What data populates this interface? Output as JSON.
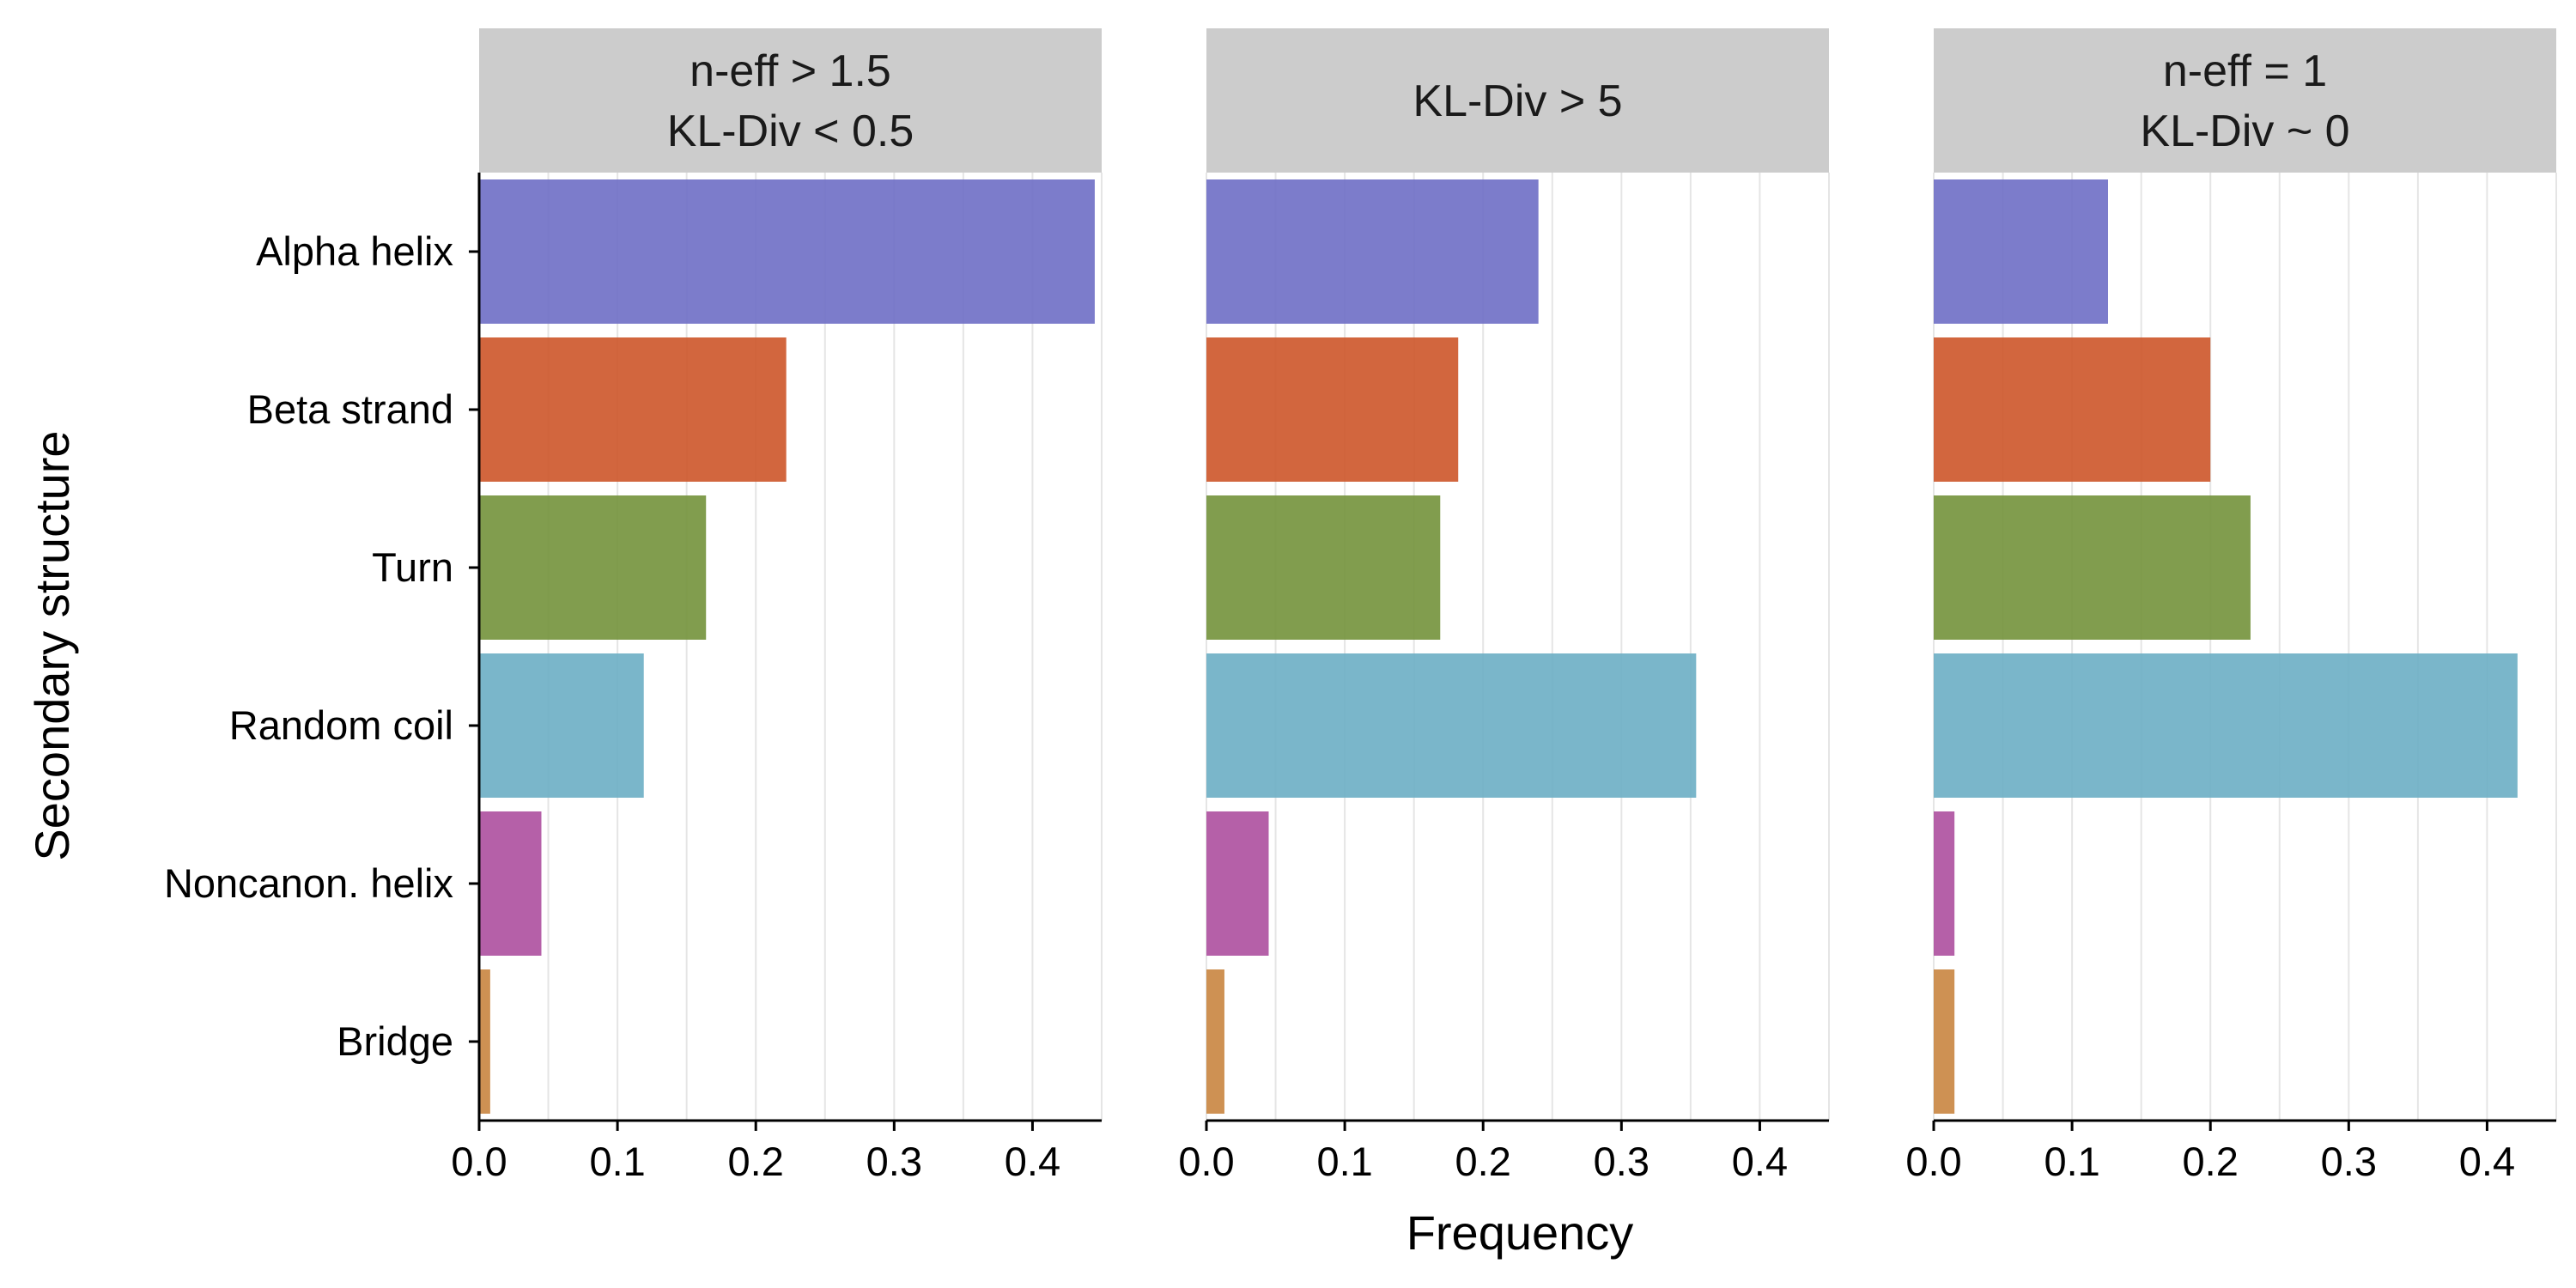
{
  "chart_data": {
    "type": "bar",
    "orientation": "horizontal",
    "xlabel": "Frequency",
    "ylabel": "Secondary structure",
    "xlim": [
      0,
      0.45
    ],
    "x_ticks": [
      "0.0",
      "0.1",
      "0.2",
      "0.3",
      "0.4"
    ],
    "grid": "vertical",
    "categories": [
      "Alpha helix",
      "Beta strand",
      "Turn",
      "Random coil",
      "Noncanon. helix",
      "Bridge"
    ],
    "colors": [
      "#6e6ec5",
      "#cd5529",
      "#73923b",
      "#6caec4",
      "#ad4f9f",
      "#c98540"
    ],
    "facets": [
      {
        "title": [
          "n-eff > 1.5",
          "KL-Div < 0.5"
        ],
        "values": [
          0.445,
          0.222,
          0.164,
          0.119,
          0.045,
          0.008
        ]
      },
      {
        "title": [
          "KL-Div > 5"
        ],
        "values": [
          0.24,
          0.182,
          0.169,
          0.354,
          0.045,
          0.013
        ]
      },
      {
        "title": [
          "n-eff = 1",
          "KL-Div ~ 0"
        ],
        "values": [
          0.126,
          0.2,
          0.229,
          0.422,
          0.015,
          0.015
        ]
      }
    ]
  }
}
